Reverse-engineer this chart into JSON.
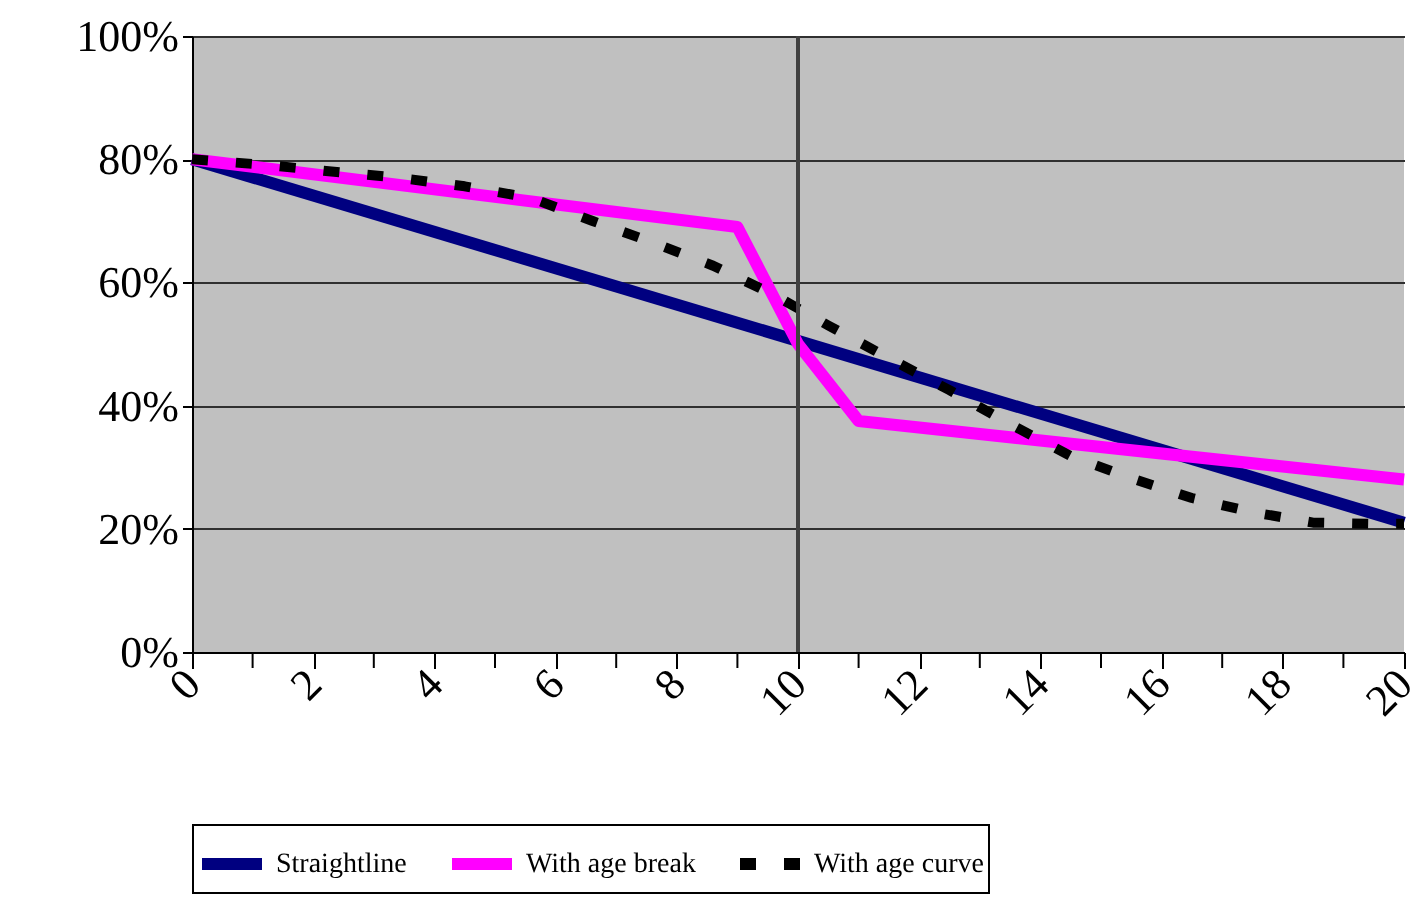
{
  "chart_data": {
    "type": "line",
    "xlim": [
      0,
      20
    ],
    "xticks": [
      0,
      {
        "value": 1,
        "label": null
      },
      2,
      {
        "value": 3,
        "label": null
      },
      4,
      {
        "value": 5,
        "label": null
      },
      6,
      {
        "value": 7,
        "label": null
      },
      8,
      {
        "value": 9,
        "label": null
      },
      10,
      {
        "value": 11,
        "label": null
      },
      12,
      {
        "value": 13,
        "label": null
      },
      14,
      {
        "value": 15,
        "label": null
      },
      16,
      {
        "value": 17,
        "label": null
      },
      18,
      {
        "value": 19,
        "label": null
      },
      20
    ],
    "ylim": [
      0,
      100
    ],
    "yticks": [
      {
        "value": 0,
        "label": "0%"
      },
      {
        "value": 20,
        "label": "20%"
      },
      {
        "value": 40,
        "label": "40%"
      },
      {
        "value": 60,
        "label": "60%"
      },
      {
        "value": 80,
        "label": "80%"
      },
      {
        "value": 100,
        "label": "100%"
      }
    ],
    "grid": "y",
    "legend": "bottom",
    "marker": "none",
    "series": [
      {
        "name": "Straightline",
        "color": "#000080",
        "line_style": "solid",
        "x": [
          0,
          20
        ],
        "values": [
          80,
          21
        ]
      },
      {
        "name": "With age break",
        "color": "#ff00ff",
        "line_style": "solid",
        "x": [
          0,
          9,
          10,
          11,
          20
        ],
        "values": [
          80,
          69,
          50,
          37.5,
          28
        ]
      },
      {
        "name": "With age curve",
        "color": "#000000",
        "line_style": "dashed",
        "x": [
          0,
          1.3,
          2.3,
          3.4,
          4.5,
          5.6,
          6.6,
          7.6,
          8.6,
          9.6,
          10.5,
          11.5,
          12.5,
          13.5,
          14.5,
          15.5,
          16.5,
          17.5,
          18.5,
          19.5,
          20
        ],
        "values": [
          80,
          79,
          78,
          77,
          75.6,
          73.7,
          70,
          66.5,
          62.7,
          58,
          53,
          47.7,
          42.5,
          37,
          31.8,
          28.2,
          25,
          22.7,
          21,
          20.8,
          20.8
        ]
      }
    ],
    "ref_lines": [
      {
        "axis": "x",
        "value": 10,
        "color": "#404040"
      }
    ]
  }
}
